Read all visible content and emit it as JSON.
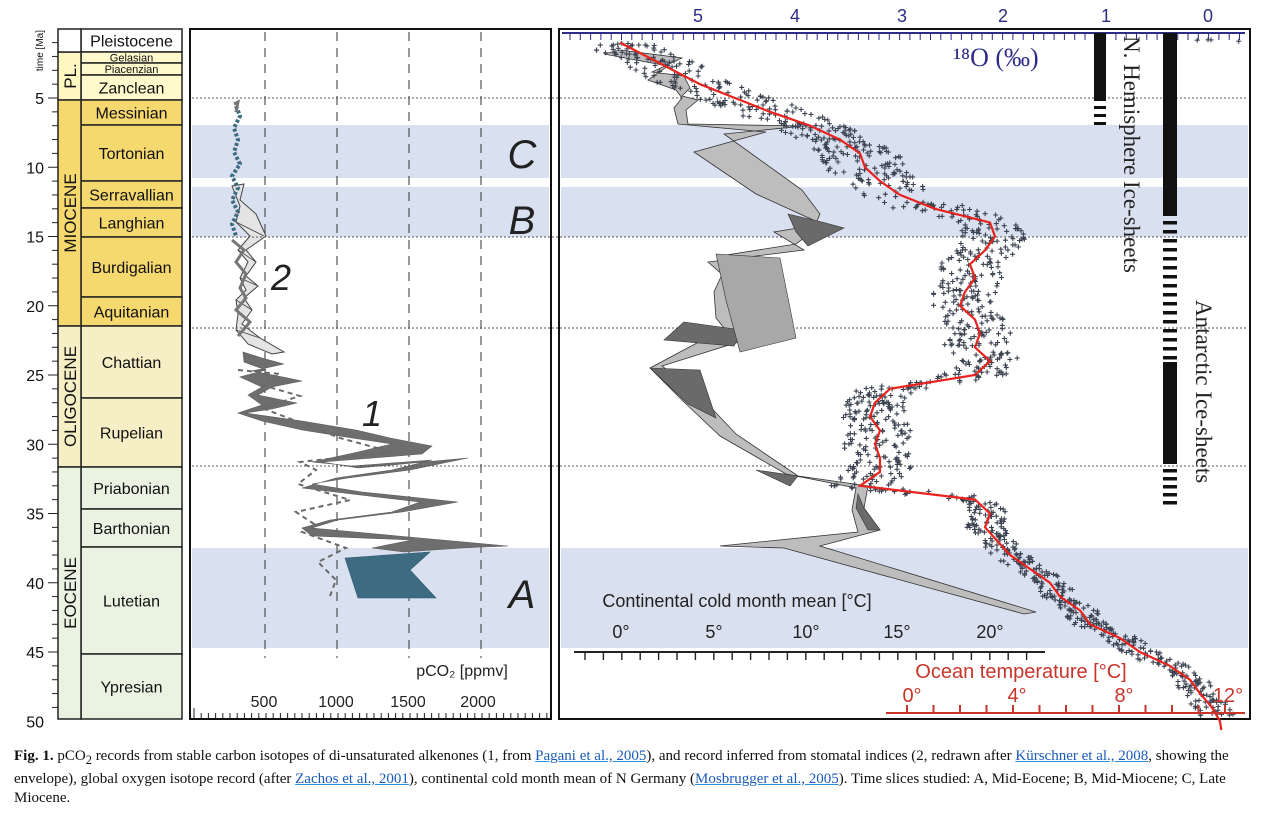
{
  "timescale": {
    "axis_label": "time [Ma]",
    "ticks": [
      "5",
      "10",
      "15",
      "20",
      "25",
      "30",
      "35",
      "40",
      "45",
      "50"
    ],
    "epochs": [
      {
        "name": "PL.",
        "fill": "#fff7c2"
      },
      {
        "name": "MIOCENE",
        "fill": "#f5d86e"
      },
      {
        "name": "OLIGOCENE",
        "fill": "#f6eec5"
      },
      {
        "name": "EOCENE",
        "fill": "#eaf3e2"
      }
    ],
    "stages": [
      {
        "name": "Pleistocene",
        "fill": "#ffffff"
      },
      {
        "name": "Gelasian",
        "fill": "#fff9cc"
      },
      {
        "name": "Piacenzian",
        "fill": "#fff9cc"
      },
      {
        "name": "Zanclean",
        "fill": "#fff9cc"
      },
      {
        "name": "Messinian",
        "fill": "#f5d86e"
      },
      {
        "name": "Tortonian",
        "fill": "#f5d86e"
      },
      {
        "name": "Serravallian",
        "fill": "#f5d86e"
      },
      {
        "name": "Langhian",
        "fill": "#f5d86e"
      },
      {
        "name": "Burdigalian",
        "fill": "#f5d86e"
      },
      {
        "name": "Aquitanian",
        "fill": "#f5d86e"
      },
      {
        "name": "Chattian",
        "fill": "#f6eec5"
      },
      {
        "name": "Rupelian",
        "fill": "#f6eec5"
      },
      {
        "name": "Priabonian",
        "fill": "#eaf3e2"
      },
      {
        "name": "Barthonian",
        "fill": "#eaf3e2"
      },
      {
        "name": "Lutetian",
        "fill": "#eaf3e2"
      },
      {
        "name": "Ypresian",
        "fill": "#eaf3e2"
      }
    ]
  },
  "pco2_panel": {
    "axis_label": "pCO₂ [ppmv]",
    "ticks": [
      "500",
      "1000",
      "1500",
      "2000"
    ],
    "record1_label": "1",
    "record2_label": "2",
    "record1_color": "#6e6e6e",
    "record2_color": "#e4e4e4",
    "time_slice_color": "#3d6b82"
  },
  "time_slices": [
    {
      "label": "C",
      "name": "Late Miocene"
    },
    {
      "label": "B",
      "name": "Mid-Miocene"
    },
    {
      "label": "A",
      "name": "Mid-Eocene"
    }
  ],
  "band_color": "#d9e0f0",
  "right_panel": {
    "d18o_ticks": [
      "5",
      "4",
      "3",
      "2",
      "1",
      "0"
    ],
    "d18o_label": "¹⁸O (‰)",
    "d18o_axis_color": "#2d2d88",
    "nh_label": "N. Hemisphere Ice-sheets",
    "aa_label": "Antarctic Ice-sheets",
    "cold_month_label": "Continental cold month mean [°C]",
    "cold_month_ticks": [
      "0°",
      "5°",
      "10°",
      "15°",
      "20°"
    ],
    "ocean_label": "Ocean temperature [°C]",
    "ocean_ticks": [
      "0°",
      "4°",
      "8°",
      "12°"
    ],
    "ocean_color": "#c8352a",
    "curve_color": "#e8231e",
    "data_color": "#3b4250"
  },
  "caption": {
    "fig_label": "Fig. 1.",
    "t1": " pCO",
    "sub": "2",
    "t2": " records from stable carbon isotopes of di-unsaturated alkenones (1, from ",
    "l1": "Pagani et al., 2005",
    "t3": "), and record inferred from stomatal indices (2, redrawn after ",
    "l2": "Kürschner et al., 2008",
    "t4": ", showing the envelope), global oxygen isotope record (after ",
    "l3": "Zachos et al., 2001",
    "t5": "), continental cold month mean of N Germany (",
    "l4": "Mosbrugger et al., 2005",
    "t6": "). Time slices studied: A, Mid-Eocene; B, Mid-Miocene; C, Late Miocene."
  }
}
